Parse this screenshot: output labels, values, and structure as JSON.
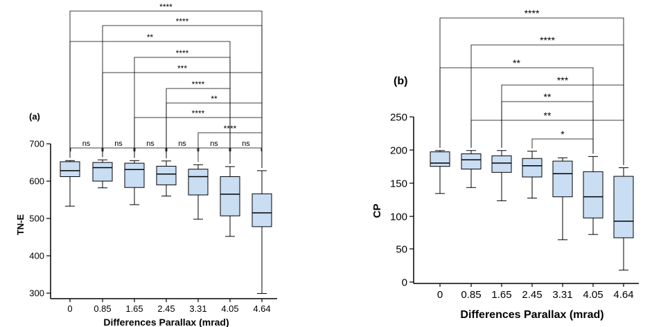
{
  "chart_data": [
    {
      "type": "box",
      "panel_label": "(a)",
      "xlabel": "Differences Parallax (mrad)",
      "ylabel": "TN-E",
      "ylim": [
        285,
        705
      ],
      "yticks": [
        "300",
        "400",
        "500",
        "600",
        "700"
      ],
      "categories": [
        "0",
        "0.85",
        "1.65",
        "2.45",
        "3.31",
        "4.05",
        "4.64"
      ],
      "boxes": [
        {
          "min": 533,
          "q1": 612,
          "median": 628,
          "q3": 652,
          "max": 655
        },
        {
          "min": 582,
          "q1": 600,
          "median": 636,
          "q3": 650,
          "max": 657
        },
        {
          "min": 537,
          "q1": 583,
          "median": 631,
          "q3": 648,
          "max": 655
        },
        {
          "min": 560,
          "q1": 590,
          "median": 619,
          "q3": 640,
          "max": 654
        },
        {
          "min": 498,
          "q1": 563,
          "median": 612,
          "q3": 632,
          "max": 644
        },
        {
          "min": 452,
          "q1": 507,
          "median": 565,
          "q3": 612,
          "max": 639
        },
        {
          "min": 299,
          "q1": 478,
          "median": 515,
          "q3": 566,
          "max": 628
        }
      ],
      "brackets": [
        {
          "from": 0,
          "to": 6,
          "label": "****"
        },
        {
          "from": 1,
          "to": 6,
          "label": "****"
        },
        {
          "from": 0,
          "to": 5,
          "label": "**"
        },
        {
          "from": 2,
          "to": 5,
          "label": "****"
        },
        {
          "from": 1,
          "to": 6,
          "label": "***"
        },
        {
          "from": 3,
          "to": 5,
          "label": "****"
        },
        {
          "from": 3,
          "to": 6,
          "label": "**"
        },
        {
          "from": 2,
          "to": 6,
          "label": "****"
        },
        {
          "from": 4,
          "to": 6,
          "label": "****"
        },
        {
          "from": 3,
          "to": 5,
          "label": "**"
        },
        {
          "from": 0,
          "to": 1,
          "label": "ns"
        },
        {
          "from": 1,
          "to": 2,
          "label": "ns"
        },
        {
          "from": 2,
          "to": 3,
          "label": "ns"
        },
        {
          "from": 3,
          "to": 4,
          "label": "ns"
        },
        {
          "from": 4,
          "to": 5,
          "label": "ns"
        },
        {
          "from": 5,
          "to": 6,
          "label": "ns"
        }
      ]
    },
    {
      "type": "box",
      "panel_label": "(b)",
      "xlabel": "Differences Parallax (mrad)",
      "ylabel": "CP",
      "ylim": [
        0,
        250
      ],
      "yticks": [
        "0",
        "50",
        "100",
        "150",
        "200",
        "250"
      ],
      "categories": [
        "0",
        "0.85",
        "1.65",
        "2.45",
        "3.31",
        "4.05",
        "4.64"
      ],
      "boxes": [
        {
          "min": 134,
          "q1": 175,
          "median": 180,
          "q3": 197,
          "max": 199
        },
        {
          "min": 143,
          "q1": 171,
          "median": 185,
          "q3": 194,
          "max": 199
        },
        {
          "min": 123,
          "q1": 166,
          "median": 180,
          "q3": 191,
          "max": 199
        },
        {
          "min": 127,
          "q1": 159,
          "median": 176,
          "q3": 187,
          "max": 198
        },
        {
          "min": 64,
          "q1": 129,
          "median": 164,
          "q3": 183,
          "max": 188
        },
        {
          "min": 72,
          "q1": 97,
          "median": 129,
          "q3": 167,
          "max": 190
        },
        {
          "min": 18,
          "q1": 67,
          "median": 92,
          "q3": 160,
          "max": 173
        }
      ],
      "brackets": [
        {
          "from": 0,
          "to": 6,
          "label": "****"
        },
        {
          "from": 1,
          "to": 6,
          "label": "****"
        },
        {
          "from": 0,
          "to": 5,
          "label": "**"
        },
        {
          "from": 2,
          "to": 6,
          "label": "***"
        },
        {
          "from": 2,
          "to": 5,
          "label": "**"
        },
        {
          "from": 1,
          "to": 6,
          "label": "**"
        },
        {
          "from": 3,
          "to": 5,
          "label": "*"
        }
      ]
    }
  ],
  "colors": {
    "box_fill": "#c9ddf3",
    "line": "#000000",
    "bracket": "#000000"
  }
}
